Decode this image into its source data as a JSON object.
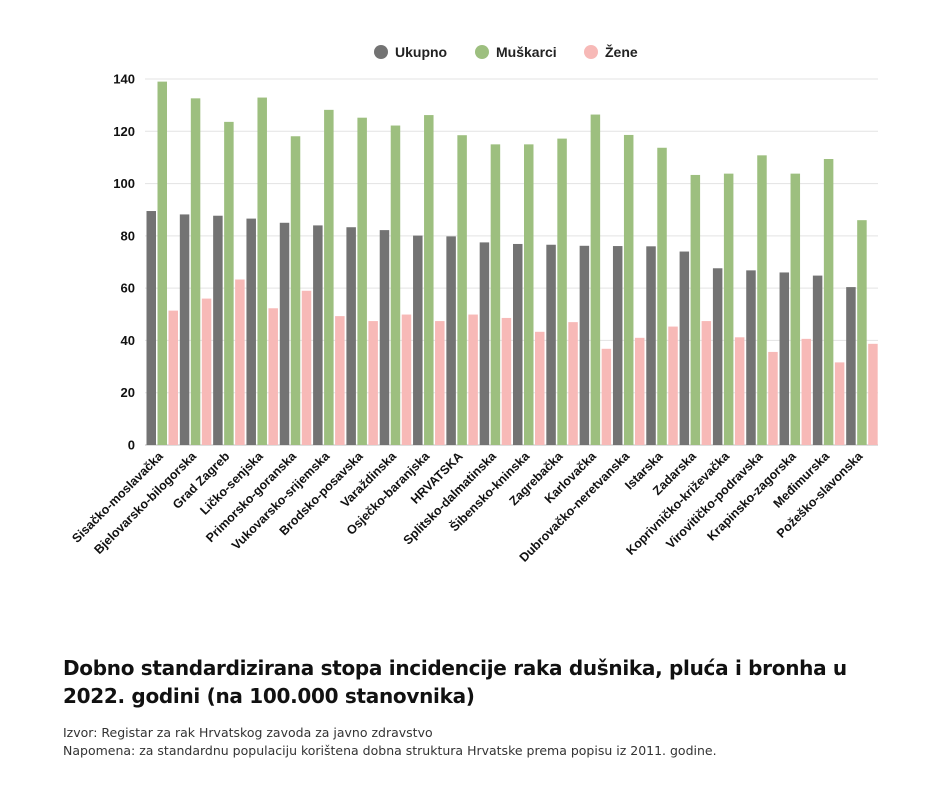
{
  "chart_data": {
    "type": "bar",
    "title": "Dobno standardizirana stopa incidencije raka dušnika, pluća i bronha u 2022. godini (na 100.000 stanovnika)",
    "categories": [
      "Sisačko-moslavačka",
      "Bjelovarsko-bilogorska",
      "Grad Zagreb",
      "Ličko-senjska",
      "Primorsko-goranska",
      "Vukovarsko-srijemska",
      "Brodsko-posavska",
      "Varaždinska",
      "Osječko-baranjska",
      "HRVATSKA",
      "Splitsko-dalmatinska",
      "Šibensko-kninska",
      "Zagrebačka",
      "Karlovačka",
      "Dubrovačko-neretvanska",
      "Istarska",
      "Zadarska",
      "Koprivničko-križevačka",
      "Virovitičko-podravska",
      "Krapinsko-zagorska",
      "Međimurska",
      "Požeško-slavonska"
    ],
    "series": [
      {
        "name": "Ukupno",
        "color": "#737373",
        "values": [
          89.5,
          88.2,
          87.7,
          86.6,
          85.0,
          84.0,
          83.3,
          82.2,
          80.1,
          79.8,
          77.5,
          76.9,
          76.6,
          76.2,
          76.1,
          76.0,
          74.0,
          67.6,
          66.8,
          66.0,
          64.8,
          60.4
        ]
      },
      {
        "name": "Muškarci",
        "color": "#9dbf7f",
        "values": [
          139.0,
          132.6,
          123.6,
          132.9,
          118.1,
          128.2,
          125.2,
          122.2,
          126.2,
          118.5,
          115.0,
          115.0,
          117.2,
          126.4,
          118.6,
          113.7,
          103.3,
          103.8,
          110.8,
          103.8,
          109.4,
          86.0
        ]
      },
      {
        "name": "Žene",
        "color": "#f7b9b7",
        "values": [
          51.4,
          56.0,
          63.3,
          52.3,
          59.0,
          49.3,
          47.4,
          49.9,
          47.4,
          49.9,
          48.6,
          43.3,
          47.0,
          36.8,
          41.0,
          45.3,
          47.4,
          41.2,
          35.6,
          40.6,
          31.6,
          38.7
        ]
      }
    ],
    "ylim": [
      0,
      140
    ],
    "yticks": [
      0,
      20,
      40,
      60,
      80,
      100,
      120,
      140
    ],
    "grid": true,
    "legend": "top-center"
  },
  "caption": {
    "title": "Dobno standardizirana stopa incidencije raka dušnika, pluća i bronha u 2022. godini (na 100.000 stanovnika)",
    "source": "Izvor: Registar za rak Hrvatskog zavoda za javno zdravstvo",
    "note": "Napomena: za standardnu populaciju korištena dobna struktura Hrvatske prema popisu iz 2011. godine."
  }
}
